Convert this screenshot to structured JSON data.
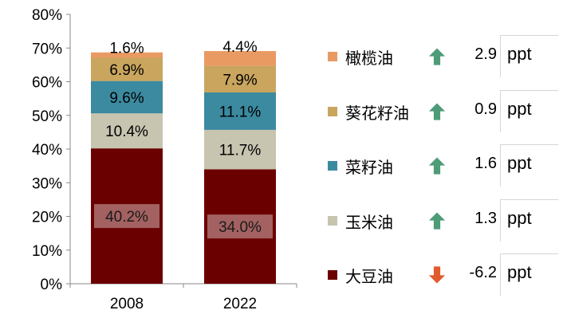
{
  "chart_data": {
    "type": "bar",
    "stacked": true,
    "categories": [
      "2008",
      "2022"
    ],
    "ylim": [
      0,
      80
    ],
    "yticks": [
      "0%",
      "10%",
      "20%",
      "30%",
      "40%",
      "50%",
      "60%",
      "70%",
      "80%"
    ],
    "series": [
      {
        "name": "大豆油",
        "color": "#6b0000",
        "values": [
          40.2,
          34.0
        ],
        "labels": [
          "40.2%",
          "34.0%"
        ],
        "change": "-6.2",
        "direction": "down"
      },
      {
        "name": "玉米油",
        "color": "#c7c4b0",
        "values": [
          10.4,
          11.7
        ],
        "labels": [
          "10.4%",
          "11.7%"
        ],
        "change": "1.3",
        "direction": "up"
      },
      {
        "name": "菜籽油",
        "color": "#3b8aa0",
        "values": [
          9.6,
          11.1
        ],
        "labels": [
          "9.6%",
          "11.1%"
        ],
        "change": "1.6",
        "direction": "up"
      },
      {
        "name": "葵花籽油",
        "color": "#c9a55e",
        "values": [
          6.9,
          7.9
        ],
        "labels": [
          "6.9%",
          "7.9%"
        ],
        "change": "0.9",
        "direction": "up"
      },
      {
        "name": "橄榄油",
        "color": "#e99a63",
        "values": [
          1.6,
          4.4
        ],
        "labels": [
          "1.6%",
          "4.4%"
        ],
        "change": "2.9",
        "direction": "up"
      }
    ],
    "legend_order": [
      4,
      3,
      2,
      1,
      0
    ],
    "unit": "ppt",
    "grid": false,
    "legend_position": "right"
  },
  "colors": {
    "up_arrow": "#4e9b78",
    "down_arrow": "#e05a2b"
  },
  "icons": {
    "up": "up-arrow-icon",
    "down": "down-arrow-icon"
  }
}
